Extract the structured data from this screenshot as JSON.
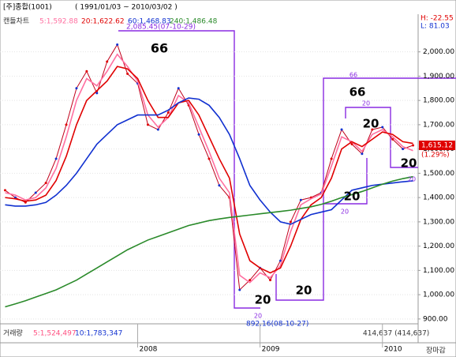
{
  "chart_data": {
    "type": "line",
    "title": "[주]종합(1001)",
    "subtitle": "( 1991/01/03 ~ 2010/03/02 )",
    "high_label": "H: -22.55",
    "low_label": "L: 81.03",
    "categories": [
      null,
      null,
      null,
      null,
      null,
      null,
      null,
      null,
      null,
      null,
      null,
      null,
      null,
      "2008",
      null,
      null,
      null,
      null,
      null,
      null,
      null,
      null,
      null,
      null,
      null,
      "2009",
      null,
      null,
      null,
      null,
      null,
      null,
      null,
      null,
      null,
      null,
      null,
      "2010",
      null,
      null,
      null
    ],
    "series": [
      {
        "name": "캔들차트",
        "color": "#c0001a",
        "values": [
          1430,
          1400,
          1380,
          1420,
          1460,
          1560,
          1700,
          1850,
          1920,
          1830,
          1960,
          2030,
          1910,
          1870,
          1700,
          1680,
          1750,
          1850,
          1780,
          1660,
          1560,
          1450,
          1400,
          1020,
          1060,
          1110,
          1060,
          1140,
          1300,
          1390,
          1400,
          1420,
          1560,
          1680,
          1620,
          1580,
          1680,
          1690,
          1640,
          1600,
          1615
        ]
      },
      {
        "name": "5:1,592.88",
        "color": "#ff6fa0",
        "values": [
          1420,
          1410,
          1390,
          1400,
          1440,
          1520,
          1650,
          1800,
          1890,
          1860,
          1920,
          1990,
          1940,
          1880,
          1740,
          1690,
          1730,
          1820,
          1790,
          1690,
          1590,
          1480,
          1420,
          1080,
          1050,
          1090,
          1070,
          1120,
          1260,
          1370,
          1395,
          1415,
          1530,
          1650,
          1630,
          1590,
          1660,
          1680,
          1650,
          1610,
          1593
        ]
      },
      {
        "name": "20:1,622.62",
        "color": "#e00000",
        "values": [
          1400,
          1395,
          1385,
          1390,
          1410,
          1470,
          1570,
          1700,
          1800,
          1840,
          1880,
          1940,
          1930,
          1890,
          1800,
          1730,
          1730,
          1790,
          1800,
          1740,
          1650,
          1560,
          1480,
          1250,
          1140,
          1110,
          1090,
          1110,
          1200,
          1310,
          1370,
          1400,
          1480,
          1600,
          1630,
          1610,
          1640,
          1670,
          1660,
          1630,
          1623
        ]
      },
      {
        "name": "60:1,468.83",
        "color": "#1030d0",
        "values": [
          1370,
          1365,
          1365,
          1370,
          1380,
          1410,
          1450,
          1500,
          1560,
          1620,
          1660,
          1700,
          1720,
          1740,
          1740,
          1740,
          1760,
          1790,
          1810,
          1805,
          1780,
          1730,
          1660,
          1560,
          1450,
          1390,
          1340,
          1300,
          1290,
          1310,
          1330,
          1340,
          1350,
          1390,
          1430,
          1440,
          1450,
          1455,
          1460,
          1465,
          1469
        ]
      },
      {
        "name": "240:1,486.48",
        "color": "#2a8a2a",
        "values": [
          950,
          962,
          975,
          990,
          1005,
          1020,
          1040,
          1060,
          1085,
          1110,
          1135,
          1160,
          1185,
          1205,
          1225,
          1240,
          1255,
          1270,
          1285,
          1295,
          1305,
          1312,
          1318,
          1323,
          1328,
          1333,
          1338,
          1343,
          1348,
          1355,
          1362,
          1372,
          1385,
          1400,
          1412,
          1425,
          1440,
          1455,
          1468,
          1478,
          1486
        ]
      }
    ],
    "ylim": [
      880,
      2090
    ],
    "yticks": [
      {
        "value": 900,
        "label": "900.00"
      },
      {
        "value": 1000,
        "label": "1,000.00"
      },
      {
        "value": 1100,
        "label": "1,100.00"
      },
      {
        "value": 1200,
        "label": "1,200.00"
      },
      {
        "value": 1300,
        "label": "1,300.00"
      },
      {
        "value": 1400,
        "label": "1,400.00"
      },
      {
        "value": 1500,
        "label": "1,500.00"
      },
      {
        "value": 1600,
        "label": "1,600.00"
      },
      {
        "value": 1700,
        "label": "1,700.00"
      },
      {
        "value": 1800,
        "label": "1,800.00"
      },
      {
        "value": 1900,
        "label": "1,900.00"
      },
      {
        "value": 2000,
        "label": "2,000.00"
      }
    ],
    "last_price": {
      "value": 1615.12,
      "label": "1,615.12",
      "change": "(1.29%)"
    },
    "high_note": "2,085.45(07-10-29)",
    "low_note": "892.16(08-10-27)",
    "annotations": [
      "66",
      "20",
      "20",
      "66",
      "20",
      "20",
      "20",
      "20",
      "20",
      "66",
      "20",
      "20"
    ],
    "volume": {
      "title": "거래량",
      "ma5": "5:1,524,497",
      "ma10": "10:1,783,347",
      "last": "414,637 (414,637)"
    },
    "status": "장마감",
    "grid": true
  }
}
